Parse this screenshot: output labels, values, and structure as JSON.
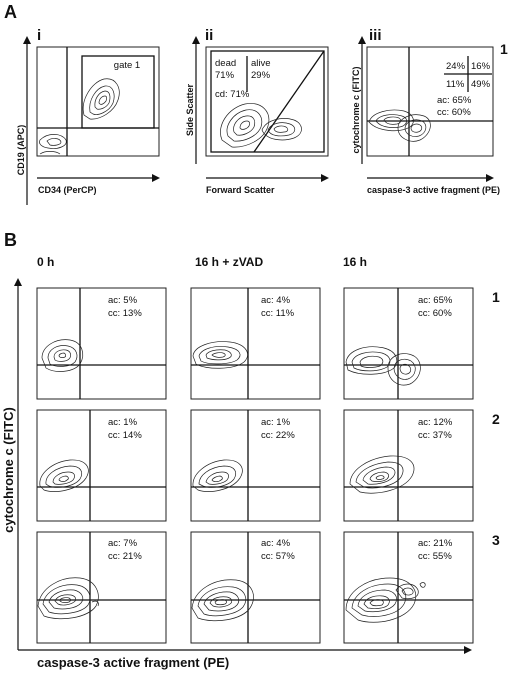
{
  "panelA": {
    "letter": "A",
    "plots": [
      {
        "roman": "i",
        "ylabel": "CD19 (APC)",
        "xlabel": "CD34 (PerCP)",
        "gate_label": "gate 1"
      },
      {
        "roman": "ii",
        "ylabel": "Side Scatter",
        "xlabel": "Forward Scatter",
        "dead_label": "dead",
        "dead_pct": "71%",
        "alive_label": "alive",
        "alive_pct": "29%",
        "cd": "cd: 71%"
      },
      {
        "roman": "iii",
        "ylabel": "cytochrome c (FITC)",
        "xlabel": "caspase-3 active fragment (PE)",
        "quad": [
          "24%",
          "16%",
          "11%",
          "49%"
        ],
        "ac": "ac: 65%",
        "cc": "cc: 60%"
      }
    ],
    "row_number": "1"
  },
  "panelB": {
    "letter": "B",
    "columns": [
      "0 h",
      "16 h + zVAD",
      "16 h"
    ],
    "rows": [
      {
        "number": "1",
        "cells": [
          {
            "ac": "ac: 5%",
            "cc": "cc: 13%"
          },
          {
            "ac": "ac: 4%",
            "cc": "cc: 11%"
          },
          {
            "ac": "ac: 65%",
            "cc": "cc: 60%"
          }
        ]
      },
      {
        "number": "2",
        "cells": [
          {
            "ac": "ac: 1%",
            "cc": "cc: 14%"
          },
          {
            "ac": "ac: 1%",
            "cc": "cc: 22%"
          },
          {
            "ac": "ac: 12%",
            "cc": "cc: 37%"
          }
        ]
      },
      {
        "number": "3",
        "cells": [
          {
            "ac": "ac: 7%",
            "cc": "cc: 21%"
          },
          {
            "ac": "ac: 4%",
            "cc": "cc: 57%"
          },
          {
            "ac": "ac: 21%",
            "cc": "cc: 55%"
          }
        ]
      }
    ],
    "ylabel": "cytochrome c (FITC)",
    "xlabel": "caspase-3 active fragment (PE)"
  }
}
